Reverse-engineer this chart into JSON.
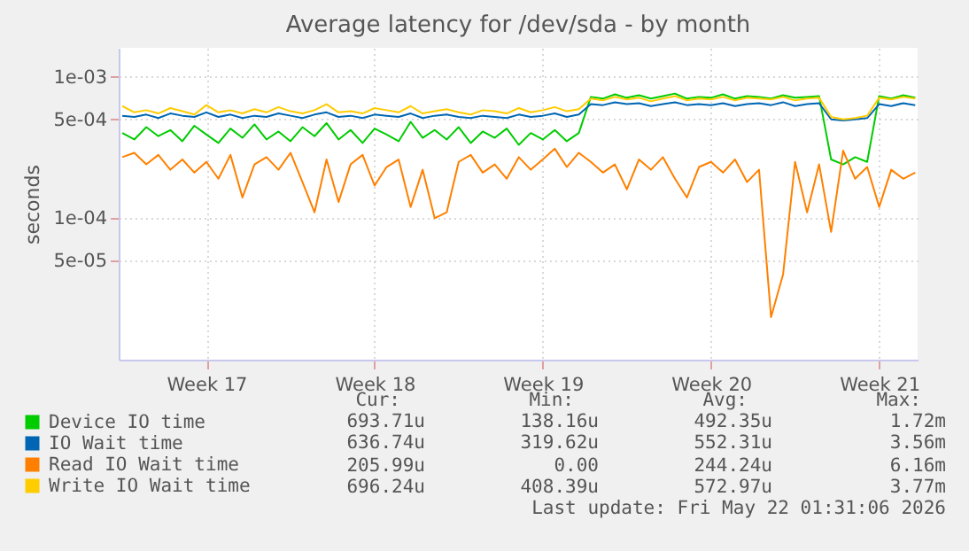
{
  "chart_data": {
    "type": "line",
    "title": "Average latency for /dev/sda - by month",
    "ylabel": "seconds",
    "log": true,
    "grid": true,
    "legend": "bottom left",
    "marker": "none",
    "line_style": "solid",
    "categories": [
      null,
      null,
      null,
      null,
      null,
      null,
      null,
      "Week 17",
      null,
      null,
      null,
      null,
      null,
      null,
      null,
      null,
      null,
      null,
      null,
      null,
      null,
      "Week 18",
      null,
      null,
      null,
      null,
      null,
      null,
      null,
      null,
      null,
      null,
      null,
      null,
      null,
      "Week 19",
      null,
      null,
      null,
      null,
      null,
      null,
      null,
      null,
      null,
      null,
      null,
      null,
      null,
      "Week 20",
      null,
      null,
      null,
      null,
      null,
      null,
      null,
      null,
      null,
      null,
      null,
      null,
      null,
      "Week 21",
      null,
      null,
      null
    ],
    "ylim": [
      1e-05,
      0.0016
    ],
    "yticks": [
      {
        "value": 5e-05,
        "label": "5e-05"
      },
      {
        "value": 0.0001,
        "label": "1e-04"
      },
      {
        "value": 0.0005,
        "label": "5e-04"
      },
      {
        "value": 0.001,
        "label": "1e-03"
      }
    ],
    "series": [
      {
        "name": "Device IO time",
        "color": "#00cc00",
        "values": [
          0.0004,
          0.00036,
          0.00044,
          0.00038,
          0.00042,
          0.00035,
          0.00045,
          0.00039,
          0.00034,
          0.00043,
          0.00037,
          0.00046,
          0.00036,
          0.00041,
          0.00035,
          0.00044,
          0.00038,
          0.00047,
          0.00036,
          0.00042,
          0.00034,
          0.00043,
          0.00039,
          0.00035,
          0.00048,
          0.00037,
          0.00042,
          0.00036,
          0.00044,
          0.00034,
          0.00041,
          0.00037,
          0.00043,
          0.00033,
          0.0004,
          0.00036,
          0.00042,
          0.00035,
          0.0004,
          0.00072,
          0.0007,
          0.00075,
          0.00071,
          0.00074,
          0.0007,
          0.00073,
          0.00076,
          0.0007,
          0.00072,
          0.00071,
          0.00075,
          0.0007,
          0.00073,
          0.00072,
          0.0007,
          0.00074,
          0.00071,
          0.00072,
          0.00073,
          0.00026,
          0.00024,
          0.00027,
          0.00025,
          0.00073,
          0.0007,
          0.00074,
          0.00071
        ]
      },
      {
        "name": "IO Wait time",
        "color": "#0066b3",
        "values": [
          0.00053,
          0.00052,
          0.00054,
          0.00051,
          0.00055,
          0.00053,
          0.00052,
          0.00056,
          0.00052,
          0.00054,
          0.00051,
          0.00053,
          0.00052,
          0.00055,
          0.00053,
          0.00051,
          0.00054,
          0.00056,
          0.00052,
          0.00053,
          0.00051,
          0.00054,
          0.00053,
          0.00052,
          0.00055,
          0.00051,
          0.00053,
          0.00054,
          0.00052,
          0.00051,
          0.00053,
          0.00052,
          0.00051,
          0.00054,
          0.00052,
          0.00053,
          0.00055,
          0.00052,
          0.00054,
          0.00064,
          0.00063,
          0.00066,
          0.00064,
          0.00065,
          0.00062,
          0.00064,
          0.00066,
          0.00063,
          0.00064,
          0.00063,
          0.00065,
          0.00062,
          0.00064,
          0.00065,
          0.00063,
          0.00066,
          0.00062,
          0.00064,
          0.00065,
          0.0005,
          0.00049,
          0.0005,
          0.00051,
          0.00064,
          0.00062,
          0.00065,
          0.00063
        ]
      },
      {
        "name": "Read IO Wait time",
        "color": "#ff8000",
        "values": [
          0.00027,
          0.00029,
          0.00024,
          0.00028,
          0.00022,
          0.00026,
          0.00021,
          0.00025,
          0.00019,
          0.00028,
          0.00014,
          0.00024,
          0.00027,
          0.00022,
          0.00029,
          0.00018,
          0.00011,
          0.00026,
          0.00013,
          0.00024,
          0.00028,
          0.00017,
          0.00023,
          0.00026,
          0.00012,
          0.00022,
          0.0001,
          0.00011,
          0.00025,
          0.00028,
          0.00021,
          0.00024,
          0.00019,
          0.00027,
          0.00022,
          0.00026,
          0.00031,
          0.00023,
          0.00029,
          0.00025,
          0.00021,
          0.00024,
          0.00016,
          0.00026,
          0.00022,
          0.00027,
          0.00019,
          0.00014,
          0.00023,
          0.00025,
          0.00021,
          0.00026,
          0.00018,
          0.00022,
          2e-05,
          4e-05,
          0.00025,
          0.00011,
          0.00024,
          8e-05,
          0.0003,
          0.00019,
          0.00023,
          0.00012,
          0.00022,
          0.00019,
          0.00021
        ]
      },
      {
        "name": "Write IO Wait time",
        "color": "#ffcc00",
        "values": [
          0.00062,
          0.00056,
          0.00058,
          0.00055,
          0.0006,
          0.00057,
          0.00054,
          0.00063,
          0.00056,
          0.00058,
          0.00055,
          0.00059,
          0.00056,
          0.00061,
          0.00057,
          0.00055,
          0.00058,
          0.00064,
          0.00056,
          0.00057,
          0.00055,
          0.0006,
          0.00058,
          0.00056,
          0.00062,
          0.00055,
          0.00057,
          0.00059,
          0.00056,
          0.00054,
          0.00058,
          0.00057,
          0.00055,
          0.0006,
          0.00056,
          0.00058,
          0.00061,
          0.00057,
          0.00059,
          0.0007,
          0.00068,
          0.00072,
          0.00069,
          0.00071,
          0.00067,
          0.0007,
          0.00073,
          0.00068,
          0.0007,
          0.00069,
          0.00072,
          0.00068,
          0.00071,
          0.0007,
          0.00069,
          0.00072,
          0.00068,
          0.0007,
          0.00071,
          0.00052,
          0.0005,
          0.00051,
          0.00053,
          0.00071,
          0.00069,
          0.00072,
          0.0007
        ]
      }
    ],
    "annotations": [
      "Cur:",
      "Min:",
      "Avg:",
      "Max:",
      "693.71u",
      "138.16u",
      "492.35u",
      "1.72m",
      "636.74u",
      "319.62u",
      "552.31u",
      "3.56m",
      "205.99u",
      "0.00",
      "244.24u",
      "6.16m",
      "696.24u",
      "408.39u",
      "572.97u",
      "3.77m",
      "Last update: Fri May 22 01:31:06 2026"
    ]
  }
}
